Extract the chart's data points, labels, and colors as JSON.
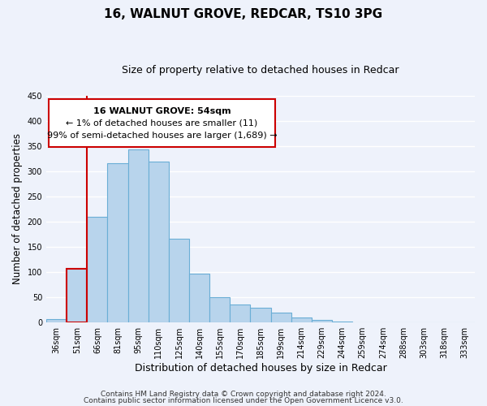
{
  "title": "16, WALNUT GROVE, REDCAR, TS10 3PG",
  "subtitle": "Size of property relative to detached houses in Redcar",
  "xlabel": "Distribution of detached houses by size in Redcar",
  "ylabel": "Number of detached properties",
  "categories": [
    "36sqm",
    "51sqm",
    "66sqm",
    "81sqm",
    "95sqm",
    "110sqm",
    "125sqm",
    "140sqm",
    "155sqm",
    "170sqm",
    "185sqm",
    "199sqm",
    "214sqm",
    "229sqm",
    "244sqm",
    "259sqm",
    "274sqm",
    "288sqm",
    "303sqm",
    "318sqm",
    "333sqm"
  ],
  "values": [
    7,
    106,
    210,
    316,
    344,
    319,
    166,
    97,
    50,
    35,
    30,
    19,
    10,
    5,
    2,
    1,
    0,
    0,
    0,
    0,
    0
  ],
  "highlight_index": 1,
  "bar_color": "#b8d4ec",
  "bar_edge_color": "#6aaed6",
  "highlight_edge_color": "#cc0000",
  "highlight_line_color": "#cc0000",
  "annotation_box_edge_color": "#cc0000",
  "annotation_text_line1": "16 WALNUT GROVE: 54sqm",
  "annotation_text_line2": "← 1% of detached houses are smaller (11)",
  "annotation_text_line3": "99% of semi-detached houses are larger (1,689) →",
  "ylim": [
    0,
    450
  ],
  "yticks": [
    0,
    50,
    100,
    150,
    200,
    250,
    300,
    350,
    400,
    450
  ],
  "footer_line1": "Contains HM Land Registry data © Crown copyright and database right 2024.",
  "footer_line2": "Contains public sector information licensed under the Open Government Licence v3.0.",
  "background_color": "#eef2fb",
  "grid_color": "#ffffff",
  "title_fontsize": 11,
  "subtitle_fontsize": 9,
  "xlabel_fontsize": 9,
  "ylabel_fontsize": 8.5,
  "tick_fontsize": 7,
  "annotation_fontsize": 8,
  "footer_fontsize": 6.5
}
